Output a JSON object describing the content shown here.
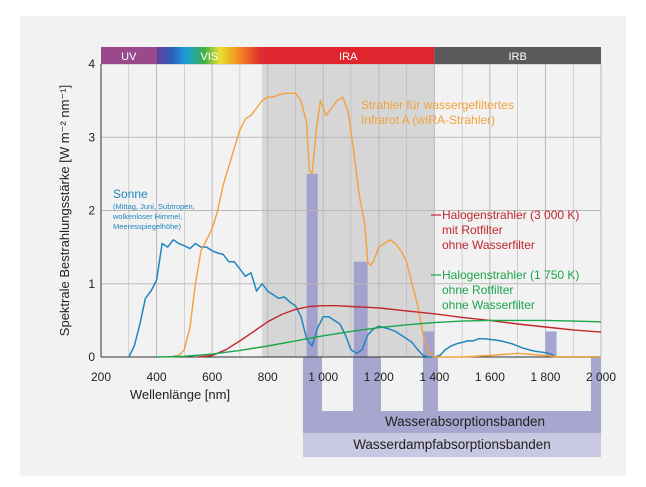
{
  "chart_data": {
    "type": "line",
    "xlabel": "Wellenlänge [nm]",
    "ylabel": "Spektrale Bestrahlungsstärke [W m⁻² nm⁻¹]",
    "xlim": [
      200,
      2000
    ],
    "ylim": [
      0,
      4
    ],
    "x_ticks": [
      "200",
      "400",
      "600",
      "800",
      "1 000",
      "1 200",
      "1 400",
      "1 600",
      "1 800",
      "2 000"
    ],
    "y_ticks": [
      "0",
      "1",
      "2",
      "3",
      "4"
    ],
    "grid": true,
    "bands": [
      {
        "label": "UV",
        "range": [
          200,
          400
        ],
        "color": "#9a4a8c"
      },
      {
        "label": "VIS",
        "range": [
          400,
          780
        ],
        "color": "#e8b020"
      },
      {
        "label": "IRA",
        "range": [
          780,
          1400
        ],
        "color": "#e0252f"
      },
      {
        "label": "IRB",
        "range": [
          1400,
          2000
        ],
        "color": "#5a5a5a"
      }
    ],
    "ira_region": [
      780,
      1400
    ],
    "absorption_bands": [
      {
        "range": [
          940,
          980
        ]
      },
      {
        "range": [
          1110,
          1160
        ]
      },
      {
        "range": [
          1360,
          1400
        ]
      },
      {
        "range": [
          1800,
          1840
        ]
      }
    ],
    "band_labels": {
      "water": "Wasserabsorptionsbanden",
      "vapor": "Wasserdampfabsorptionsbanden"
    },
    "series": [
      {
        "name": "Sonne",
        "sublabel": [
          "(Mittag, Juni, Subtropen,",
          "wolkenloser Himmel,",
          "Meeresspiegelhöhe)"
        ],
        "color": "#1f86bf",
        "x": [
          300,
          320,
          340,
          360,
          380,
          400,
          420,
          440,
          460,
          480,
          500,
          520,
          540,
          560,
          580,
          600,
          620,
          640,
          660,
          680,
          700,
          720,
          740,
          760,
          780,
          800,
          820,
          840,
          860,
          880,
          900,
          920,
          940,
          960,
          980,
          1000,
          1020,
          1040,
          1060,
          1080,
          1100,
          1120,
          1140,
          1160,
          1180,
          1200,
          1220,
          1240,
          1260,
          1280,
          1300,
          1320,
          1340,
          1360,
          1380,
          1400,
          1420,
          1440,
          1460,
          1480,
          1500,
          1520,
          1540,
          1560,
          1580,
          1600,
          1640,
          1680,
          1720,
          1760,
          1800,
          1820,
          1840,
          1900,
          1960,
          2000
        ],
        "y": [
          0.0,
          0.15,
          0.45,
          0.8,
          0.9,
          1.05,
          1.55,
          1.5,
          1.6,
          1.55,
          1.52,
          1.48,
          1.55,
          1.5,
          1.5,
          1.45,
          1.42,
          1.4,
          1.3,
          1.3,
          1.2,
          1.1,
          1.15,
          0.9,
          1.0,
          0.9,
          0.85,
          0.8,
          0.82,
          0.75,
          0.7,
          0.55,
          0.25,
          0.15,
          0.4,
          0.55,
          0.55,
          0.5,
          0.45,
          0.3,
          0.1,
          0.05,
          0.1,
          0.3,
          0.38,
          0.42,
          0.4,
          0.38,
          0.35,
          0.3,
          0.25,
          0.2,
          0.1,
          0.02,
          0.0,
          0.0,
          0.02,
          0.1,
          0.15,
          0.18,
          0.2,
          0.22,
          0.22,
          0.25,
          0.25,
          0.24,
          0.22,
          0.18,
          0.12,
          0.08,
          0.06,
          0.04,
          0.0,
          0.0,
          0.0,
          0.0
        ]
      },
      {
        "name": "Strahler für wassergefiltertes Infrarot A (wIRA-Strahler)",
        "color": "#f3a13d",
        "x": [
          450,
          480,
          500,
          520,
          540,
          560,
          580,
          600,
          620,
          640,
          660,
          680,
          700,
          720,
          740,
          760,
          780,
          800,
          820,
          840,
          860,
          880,
          900,
          920,
          940,
          950,
          960,
          975,
          990,
          1010,
          1030,
          1050,
          1070,
          1090,
          1110,
          1130,
          1150,
          1160,
          1170,
          1180,
          1190,
          1200,
          1220,
          1240,
          1260,
          1280,
          1300,
          1320,
          1340,
          1360,
          1380,
          1400,
          1450,
          1500,
          1600,
          1700,
          1800,
          1850,
          1900,
          2000
        ],
        "y": [
          0.0,
          0.02,
          0.1,
          0.4,
          1.0,
          1.45,
          1.6,
          1.75,
          2.0,
          2.35,
          2.6,
          2.85,
          3.1,
          3.25,
          3.3,
          3.4,
          3.5,
          3.55,
          3.55,
          3.58,
          3.6,
          3.6,
          3.6,
          3.5,
          3.2,
          2.55,
          2.5,
          3.1,
          3.5,
          3.3,
          3.4,
          3.5,
          3.55,
          3.35,
          2.8,
          2.2,
          1.8,
          1.3,
          1.25,
          1.3,
          1.4,
          1.5,
          1.55,
          1.6,
          1.55,
          1.45,
          1.3,
          1.0,
          0.7,
          0.3,
          0.05,
          0.0,
          0.0,
          0.0,
          0.02,
          0.05,
          0.02,
          0.0,
          0.0,
          0.0
        ]
      },
      {
        "name": "Halogenstrahler (3 000 K)",
        "label_lines": [
          "Halogenstrahler (3 000 K)",
          "mit Rotfilter",
          "ohne Wasserfilter"
        ],
        "color": "#c0272d",
        "x": [
          550,
          600,
          650,
          700,
          750,
          800,
          850,
          900,
          950,
          1000,
          1050,
          1100,
          1200,
          1300,
          1400,
          1500,
          1600,
          1700,
          1800,
          1900,
          2000
        ],
        "y": [
          0.0,
          0.02,
          0.1,
          0.22,
          0.35,
          0.48,
          0.58,
          0.65,
          0.69,
          0.7,
          0.7,
          0.69,
          0.67,
          0.63,
          0.59,
          0.54,
          0.5,
          0.45,
          0.41,
          0.37,
          0.34
        ]
      },
      {
        "name": "Halogenstrahler (1 750 K)",
        "label_lines": [
          "Halogenstrahler (1 750 K)",
          "ohne Rotfilter",
          "ohne Wasserfilter"
        ],
        "color": "#1aa64a",
        "x": [
          400,
          500,
          600,
          700,
          800,
          900,
          1000,
          1100,
          1200,
          1300,
          1400,
          1500,
          1600,
          1700,
          1800,
          1900,
          2000
        ],
        "y": [
          0.0,
          0.01,
          0.04,
          0.09,
          0.15,
          0.22,
          0.29,
          0.35,
          0.4,
          0.44,
          0.47,
          0.49,
          0.5,
          0.5,
          0.5,
          0.49,
          0.48
        ]
      }
    ]
  }
}
